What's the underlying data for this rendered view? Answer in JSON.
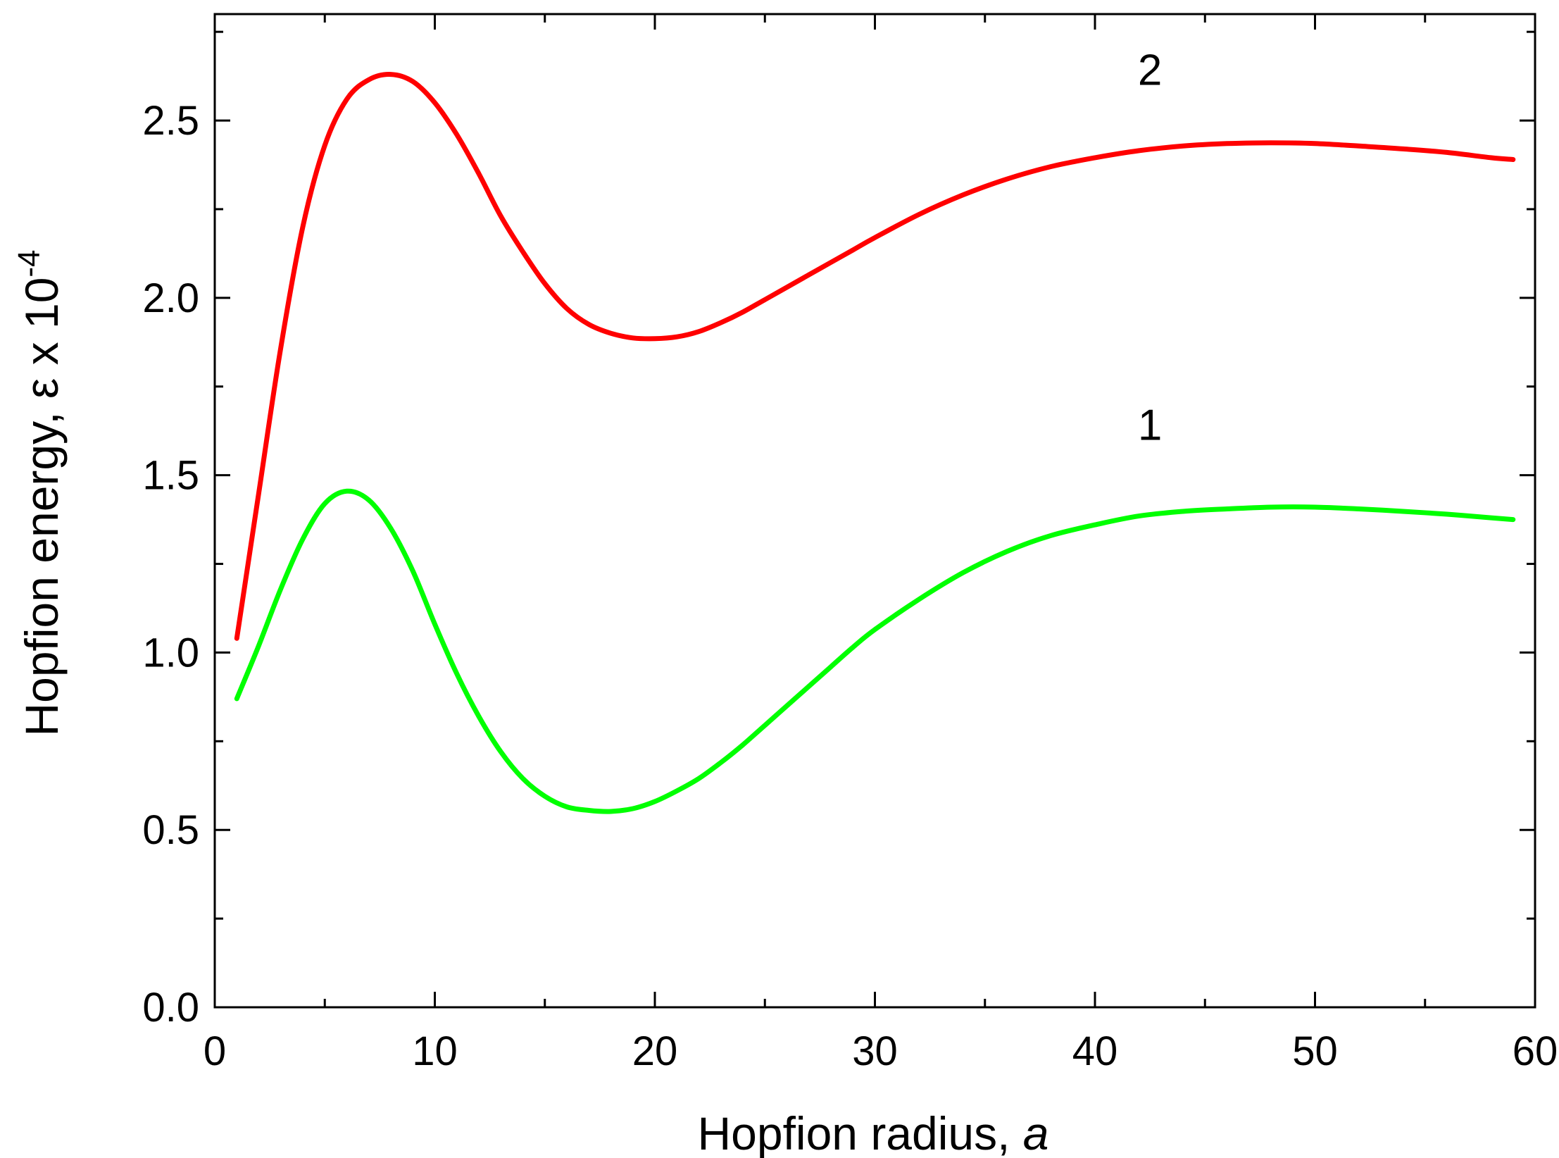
{
  "chart_data": {
    "type": "line",
    "title": "",
    "xlabel": "Hopfion radius, ",
    "xlabel_italic": "a",
    "ylabel": "Hopfion energy, ε x 10",
    "ylabel_exponent": "-4",
    "xlim": [
      0,
      60
    ],
    "ylim": [
      0,
      2.8
    ],
    "x_ticks": [
      "0",
      "10",
      "20",
      "30",
      "40",
      "50",
      "60"
    ],
    "y_ticks": [
      "0.0",
      "0.5",
      "1.0",
      "1.5",
      "2.0",
      "2.5"
    ],
    "grid": false,
    "series": [
      {
        "name": "1",
        "color": "#00ff00",
        "label_position": {
          "x": 42.5,
          "y": 1.6
        },
        "points": [
          [
            1,
            0.87
          ],
          [
            2,
            1.02
          ],
          [
            3,
            1.18
          ],
          [
            4,
            1.32
          ],
          [
            5,
            1.42
          ],
          [
            6,
            1.455
          ],
          [
            7,
            1.43
          ],
          [
            8,
            1.35
          ],
          [
            9,
            1.23
          ],
          [
            10,
            1.08
          ],
          [
            11,
            0.94
          ],
          [
            12,
            0.82
          ],
          [
            13,
            0.72
          ],
          [
            14,
            0.645
          ],
          [
            15,
            0.595
          ],
          [
            16,
            0.565
          ],
          [
            17,
            0.555
          ],
          [
            18,
            0.552
          ],
          [
            19,
            0.56
          ],
          [
            20,
            0.58
          ],
          [
            21,
            0.61
          ],
          [
            22,
            0.645
          ],
          [
            23,
            0.69
          ],
          [
            24,
            0.74
          ],
          [
            25,
            0.795
          ],
          [
            26,
            0.85
          ],
          [
            27,
            0.905
          ],
          [
            28,
            0.96
          ],
          [
            29,
            1.015
          ],
          [
            30,
            1.065
          ],
          [
            32,
            1.15
          ],
          [
            34,
            1.225
          ],
          [
            36,
            1.285
          ],
          [
            38,
            1.33
          ],
          [
            40,
            1.36
          ],
          [
            42,
            1.385
          ],
          [
            44,
            1.398
          ],
          [
            46,
            1.405
          ],
          [
            48,
            1.41
          ],
          [
            50,
            1.41
          ],
          [
            52,
            1.405
          ],
          [
            54,
            1.398
          ],
          [
            56,
            1.39
          ],
          [
            58,
            1.38
          ],
          [
            59,
            1.375
          ]
        ]
      },
      {
        "name": "2",
        "color": "#ff0000",
        "label_position": {
          "x": 42.5,
          "y": 2.6
        },
        "points": [
          [
            1,
            1.04
          ],
          [
            2,
            1.45
          ],
          [
            3,
            1.86
          ],
          [
            4,
            2.2
          ],
          [
            5,
            2.43
          ],
          [
            6,
            2.56
          ],
          [
            7,
            2.615
          ],
          [
            8,
            2.63
          ],
          [
            9,
            2.61
          ],
          [
            10,
            2.55
          ],
          [
            11,
            2.46
          ],
          [
            12,
            2.35
          ],
          [
            13,
            2.23
          ],
          [
            14,
            2.13
          ],
          [
            15,
            2.04
          ],
          [
            16,
            1.97
          ],
          [
            17,
            1.925
          ],
          [
            18,
            1.9
          ],
          [
            19,
            1.887
          ],
          [
            20,
            1.885
          ],
          [
            21,
            1.89
          ],
          [
            22,
            1.905
          ],
          [
            23,
            1.93
          ],
          [
            24,
            1.96
          ],
          [
            25,
            1.995
          ],
          [
            26,
            2.03
          ],
          [
            27,
            2.065
          ],
          [
            28,
            2.1
          ],
          [
            29,
            2.135
          ],
          [
            30,
            2.17
          ],
          [
            32,
            2.235
          ],
          [
            34,
            2.29
          ],
          [
            36,
            2.335
          ],
          [
            38,
            2.37
          ],
          [
            40,
            2.395
          ],
          [
            42,
            2.415
          ],
          [
            44,
            2.428
          ],
          [
            46,
            2.435
          ],
          [
            48,
            2.437
          ],
          [
            50,
            2.435
          ],
          [
            52,
            2.428
          ],
          [
            54,
            2.42
          ],
          [
            56,
            2.41
          ],
          [
            58,
            2.395
          ],
          [
            59,
            2.39
          ]
        ]
      }
    ]
  }
}
